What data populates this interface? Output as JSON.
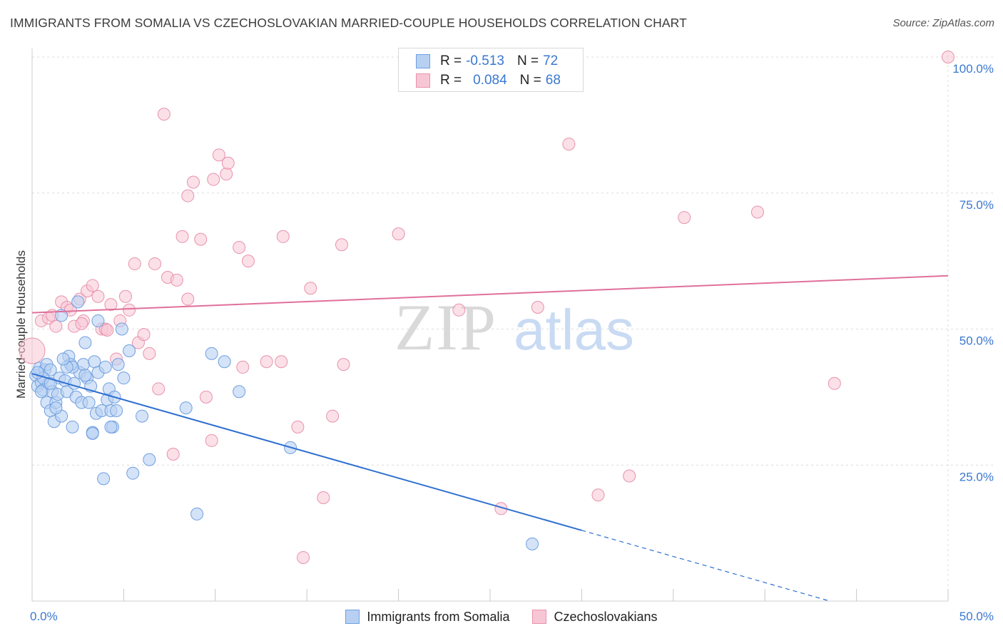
{
  "header": {
    "title": "IMMIGRANTS FROM SOMALIA VS CZECHOSLOVAKIAN MARRIED-COUPLE HOUSEHOLDS CORRELATION CHART",
    "source": "Source: ZipAtlas.com"
  },
  "watermark": {
    "zip": "ZIP",
    "atlas": "atlas"
  },
  "colors": {
    "blue_fill": "#b7d0f2",
    "blue_stroke": "#6f9fe0",
    "blue_line": "#2e6fd0",
    "pink_fill": "#f7c6d5",
    "pink_stroke": "#e892ad",
    "pink_line": "#e0709a",
    "tick_text": "#3a78d0",
    "grid": "#dcdcdc"
  },
  "legend": {
    "series": [
      {
        "r_label": "R =",
        "r_value": "-0.513",
        "n_label": "N =",
        "n_value": "72"
      },
      {
        "r_label": "R =",
        "r_value": "0.084",
        "n_label": "N =",
        "n_value": "68"
      }
    ],
    "bottom": [
      "Immigrants from Somalia",
      "Czechoslovakians"
    ]
  },
  "chart_data": {
    "type": "scatter",
    "title": "IMMIGRANTS FROM SOMALIA VS CZECHOSLOVAKIAN MARRIED-COUPLE HOUSEHOLDS CORRELATION CHART",
    "xlabel": "",
    "ylabel": "Married-couple Households",
    "xlim": [
      0,
      50
    ],
    "ylim": [
      0,
      100
    ],
    "x_tick_labels": [
      "0.0%",
      "50.0%"
    ],
    "y_ticks": [
      25,
      50,
      75,
      100
    ],
    "y_tick_labels": [
      "25.0%",
      "50.0%",
      "75.0%",
      "100.0%"
    ],
    "grid": true,
    "legend_position": "top-center",
    "series": [
      {
        "name": "Immigrants from Somalia",
        "r": -0.513,
        "n": 72,
        "trend": {
          "x0": 0,
          "y0": 41.8,
          "x1": 30,
          "y1": 13.0,
          "dashed_to_x": 43.5
        },
        "points": [
          [
            0.2,
            41.5
          ],
          [
            0.3,
            39.5
          ],
          [
            0.4,
            42.8
          ],
          [
            0.5,
            40.2
          ],
          [
            0.6,
            38.8
          ],
          [
            0.7,
            42.5
          ],
          [
            0.8,
            36.5
          ],
          [
            0.8,
            43.5
          ],
          [
            0.9,
            40
          ],
          [
            1.0,
            35
          ],
          [
            1.0,
            42.5
          ],
          [
            1.1,
            38.5
          ],
          [
            1.2,
            33
          ],
          [
            1.3,
            36.5
          ],
          [
            1.4,
            38
          ],
          [
            1.5,
            41
          ],
          [
            1.6,
            34
          ],
          [
            1.6,
            52.5
          ],
          [
            1.8,
            40.5
          ],
          [
            1.9,
            38.5
          ],
          [
            2.0,
            45
          ],
          [
            2.1,
            43.5
          ],
          [
            2.2,
            32
          ],
          [
            2.3,
            40
          ],
          [
            2.4,
            37.5
          ],
          [
            2.5,
            55
          ],
          [
            2.6,
            42
          ],
          [
            2.7,
            36.5
          ],
          [
            2.8,
            43.5
          ],
          [
            2.9,
            47.5
          ],
          [
            3.0,
            41
          ],
          [
            3.1,
            36.5
          ],
          [
            3.2,
            39.5
          ],
          [
            3.3,
            31
          ],
          [
            3.4,
            44
          ],
          [
            3.5,
            34.5
          ],
          [
            3.6,
            42
          ],
          [
            3.6,
            51.5
          ],
          [
            3.8,
            35
          ],
          [
            3.9,
            22.5
          ],
          [
            4.0,
            43
          ],
          [
            4.1,
            37
          ],
          [
            4.2,
            39
          ],
          [
            4.3,
            35
          ],
          [
            4.4,
            32
          ],
          [
            4.5,
            37.5
          ],
          [
            4.6,
            35
          ],
          [
            4.7,
            43.5
          ],
          [
            4.9,
            50
          ],
          [
            5.0,
            41
          ],
          [
            5.3,
            46
          ],
          [
            5.5,
            23.5
          ],
          [
            6.0,
            34
          ],
          [
            6.4,
            26
          ],
          [
            8.4,
            35.5
          ],
          [
            9.0,
            16
          ],
          [
            9.8,
            45.5
          ],
          [
            10.5,
            44
          ],
          [
            11.3,
            38.5
          ],
          [
            14.1,
            28.2
          ],
          [
            27.3,
            10.5
          ],
          [
            1.3,
            35.5
          ],
          [
            0.6,
            41
          ],
          [
            2.2,
            43
          ],
          [
            3.3,
            30.8
          ],
          [
            1.9,
            43
          ],
          [
            0.3,
            42
          ],
          [
            4.3,
            32
          ],
          [
            2.9,
            41.5
          ],
          [
            1.0,
            40
          ],
          [
            0.5,
            38.5
          ],
          [
            1.7,
            44.5
          ]
        ]
      },
      {
        "name": "Czechoslovakians",
        "r": 0.084,
        "n": 68,
        "trend": {
          "x0": 0,
          "y0": 53.0,
          "x1": 50,
          "y1": 59.8
        },
        "points": [
          [
            0.0,
            46
          ],
          [
            0.5,
            51.5
          ],
          [
            0.9,
            52
          ],
          [
            1.1,
            52.5
          ],
          [
            1.3,
            50.5
          ],
          [
            1.6,
            55
          ],
          [
            1.9,
            54
          ],
          [
            2.1,
            53.5
          ],
          [
            2.3,
            50.5
          ],
          [
            2.6,
            55.5
          ],
          [
            2.8,
            51.5
          ],
          [
            3.0,
            57
          ],
          [
            3.3,
            58
          ],
          [
            3.6,
            56
          ],
          [
            3.8,
            50
          ],
          [
            4.0,
            50
          ],
          [
            4.3,
            54.5
          ],
          [
            4.6,
            44.5
          ],
          [
            4.8,
            51.5
          ],
          [
            5.1,
            56
          ],
          [
            5.3,
            53.5
          ],
          [
            5.6,
            62
          ],
          [
            5.8,
            47.5
          ],
          [
            6.1,
            49
          ],
          [
            6.4,
            45.5
          ],
          [
            6.7,
            62
          ],
          [
            6.9,
            39
          ],
          [
            7.2,
            89.5
          ],
          [
            7.4,
            59.5
          ],
          [
            7.7,
            27
          ],
          [
            7.9,
            59
          ],
          [
            8.2,
            67
          ],
          [
            8.5,
            55.5
          ],
          [
            8.5,
            74.5
          ],
          [
            8.8,
            77
          ],
          [
            9.2,
            66.5
          ],
          [
            9.5,
            37.5
          ],
          [
            9.8,
            29.5
          ],
          [
            9.9,
            77.5
          ],
          [
            10.2,
            82
          ],
          [
            10.6,
            78.5
          ],
          [
            10.7,
            80.5
          ],
          [
            11.3,
            65
          ],
          [
            11.5,
            43
          ],
          [
            11.8,
            62.5
          ],
          [
            12.8,
            44
          ],
          [
            13.7,
            67
          ],
          [
            13.6,
            44
          ],
          [
            14.5,
            32
          ],
          [
            14.8,
            8
          ],
          [
            15.2,
            57.5
          ],
          [
            15.9,
            19
          ],
          [
            16.4,
            34
          ],
          [
            16.9,
            65.5
          ],
          [
            17.0,
            43.5
          ],
          [
            20.0,
            67.5
          ],
          [
            23.3,
            53.5
          ],
          [
            25.6,
            17
          ],
          [
            27.6,
            54
          ],
          [
            29.3,
            84
          ],
          [
            30.9,
            19.5
          ],
          [
            32.6,
            23
          ],
          [
            35.6,
            70.5
          ],
          [
            39.6,
            71.5
          ],
          [
            43.8,
            40
          ],
          [
            50.0,
            100
          ],
          [
            4.1,
            49.8
          ],
          [
            2.7,
            51
          ]
        ]
      }
    ]
  }
}
